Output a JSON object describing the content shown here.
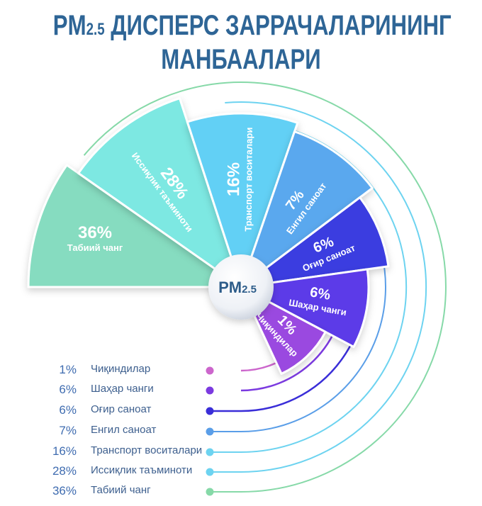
{
  "title": {
    "line1_prefix": "PM",
    "line1_sub": "2.5",
    "line1_rest": " ДИСПЕРС ЗАРРАЧАЛАРИНИНГ",
    "line2": "МАНБААЛАРИ"
  },
  "center": {
    "label": "PM",
    "sub": "2.5"
  },
  "chart_data": {
    "type": "pie",
    "title": "PM2.5 ДИСПЕРС ЗАРРАЧАЛАРИНИНГ МАНБААЛАРИ",
    "categories": [
      "Табиий чанг",
      "Иссиқлик таъминоти",
      "Транспорт воситалари",
      "Енгил саноат",
      "Оғир саноат",
      "Шаҳар чанги",
      "Чиқиндилар"
    ],
    "values": [
      36,
      28,
      16,
      7,
      6,
      6,
      1
    ],
    "value_labels": [
      "36%",
      "28%",
      "16%",
      "7%",
      "6%",
      "6%",
      "1%"
    ],
    "colors": [
      "#86dcc0",
      "#7de8e2",
      "#62d0f5",
      "#5aa8ee",
      "#3a3ee0",
      "#5b3ae8",
      "#9a4ae0"
    ],
    "legend_colors": [
      "#86d9a8",
      "#6dd3f0",
      "#6dd3f0",
      "#5a9ee8",
      "#3a2ed8",
      "#7b3ae0",
      "#cc66cc"
    ]
  },
  "legend": [
    {
      "pct": "1%",
      "label": "Чиқиндилар"
    },
    {
      "pct": "6%",
      "label": "Шаҳар чанги"
    },
    {
      "pct": "6%",
      "label": "Оғир саноат"
    },
    {
      "pct": "7%",
      "label": "Енгил саноат"
    },
    {
      "pct": "16%",
      "label": "Транспорт воситалари"
    },
    {
      "pct": "28%",
      "label": "Иссиқлик таъминоти"
    },
    {
      "pct": "36%",
      "label": "Табиий чанг"
    }
  ]
}
